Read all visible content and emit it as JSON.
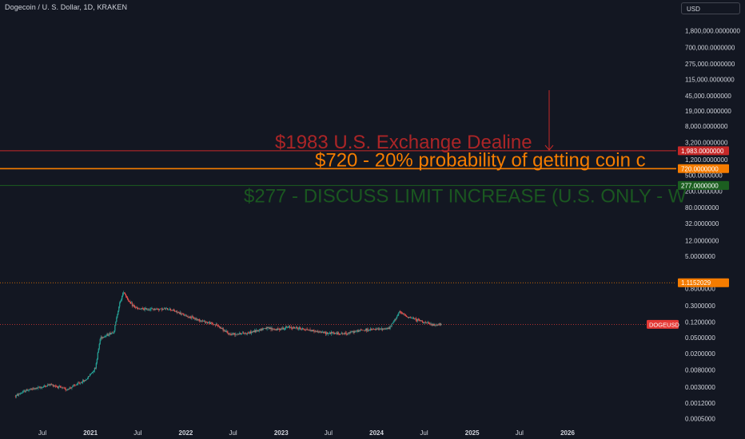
{
  "header": {
    "title": "Dogecoin / U. S. Dollar, 1D, KRAKEN",
    "currency": "USD"
  },
  "colors": {
    "background": "#131722",
    "text": "#d1d4dc",
    "red": "#c62828",
    "orange": "#f57c00",
    "green": "#1b5e20",
    "candle_up": "#26a69a",
    "candle_down": "#ef5350",
    "price_tag": "#e53935"
  },
  "chart_data": {
    "type": "line",
    "scale": "log",
    "symbol": "DOGEUSD",
    "x_ticks": [
      "Jul",
      "2021",
      "Jul",
      "2022",
      "Jul",
      "2023",
      "Jul",
      "2024",
      "Jul",
      "2025",
      "Jul",
      "2026"
    ],
    "x_tick_dates": [
      "2020-07-01",
      "2021-01-01",
      "2021-07-01",
      "2022-01-01",
      "2022-07-01",
      "2023-01-01",
      "2023-07-01",
      "2024-01-01",
      "2024-07-01",
      "2025-01-01",
      "2025-07-01",
      "2026-01-01"
    ],
    "x_range": [
      "2020-03-20",
      "2026-10-15"
    ],
    "y_tick_labels": [
      "1,800,000.0000000",
      "700,000.0000000",
      "275,000.0000000",
      "115,000.0000000",
      "45,000.0000000",
      "19,000.0000000",
      "8,000.0000000",
      "3,200.0000000",
      "1,200.0000000",
      "500.0000000",
      "200.0000000",
      "80.0000000",
      "32.0000000",
      "12.0000000",
      "5.0000000",
      "0.8000000",
      "0.3000000",
      "0.1200000",
      "0.0500000",
      "0.0200000",
      "0.0080000",
      "0.0030000",
      "0.0012000",
      "0.0005000"
    ],
    "y_tick_values": [
      1800000,
      700000,
      275000,
      115000,
      45000,
      19000,
      8000,
      3200,
      1200,
      500,
      200,
      80,
      32,
      12,
      5,
      0.8,
      0.3,
      0.12,
      0.05,
      0.02,
      0.008,
      0.003,
      0.0012,
      0.0005
    ],
    "y_range": [
      0.0004,
      4500000
    ],
    "price_series": {
      "name": "DOGEUSD",
      "x": [
        "2020-03-20",
        "2020-05-01",
        "2020-07-01",
        "2020-08-01",
        "2020-10-01",
        "2020-12-15",
        "2021-01-20",
        "2021-02-08",
        "2021-03-01",
        "2021-04-01",
        "2021-04-20",
        "2021-05-08",
        "2021-06-01",
        "2021-07-01",
        "2021-09-01",
        "2021-11-01",
        "2022-01-01",
        "2022-03-01",
        "2022-05-01",
        "2022-06-15",
        "2022-09-01",
        "2022-11-01",
        "2022-12-15",
        "2023-02-01",
        "2023-04-01",
        "2023-06-15",
        "2023-09-01",
        "2023-11-01",
        "2024-01-15",
        "2024-02-20",
        "2024-03-28",
        "2024-05-01",
        "2024-06-15",
        "2024-08-05",
        "2024-09-05"
      ],
      "y": [
        0.0018,
        0.0025,
        0.003,
        0.0035,
        0.0026,
        0.0045,
        0.009,
        0.05,
        0.055,
        0.07,
        0.3,
        0.68,
        0.35,
        0.25,
        0.25,
        0.25,
        0.17,
        0.13,
        0.1,
        0.06,
        0.065,
        0.085,
        0.078,
        0.09,
        0.08,
        0.065,
        0.062,
        0.075,
        0.08,
        0.085,
        0.21,
        0.16,
        0.13,
        0.1,
        0.105
      ]
    },
    "horizontal_lines": [
      {
        "value": 1983,
        "label": "1,983.0000000",
        "color": "#c62828"
      },
      {
        "value": 720,
        "label": "720.0000000",
        "color": "#f57c00"
      },
      {
        "value": 277,
        "label": "277.0000000",
        "color": "#1b5e20"
      },
      {
        "value": 1.1152029,
        "label": "1.1152029",
        "color": "#f57c00"
      }
    ],
    "annotations": [
      {
        "text": "$1983 U.S. Exchange Dealine",
        "color": "#c62828"
      },
      {
        "text": "$720 - 20% probability of getting coin c",
        "color": "#f57c00"
      },
      {
        "text": "$277 - DISCUSS LIMIT INCREASE (U.S. ONLY - W",
        "color": "#1b5e20"
      }
    ],
    "current_price_label": "DOGEUSD",
    "current_price": 0.105
  }
}
